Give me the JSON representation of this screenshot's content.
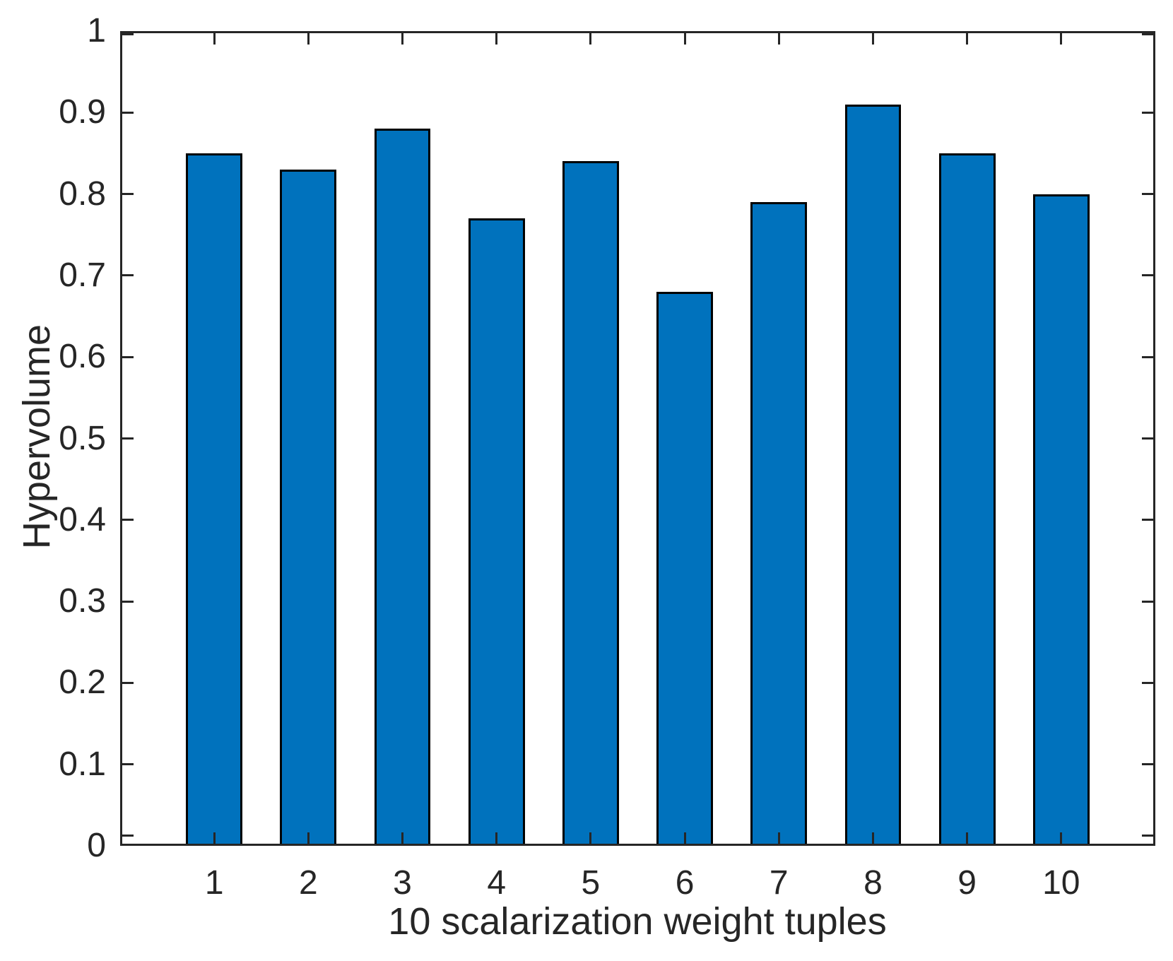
{
  "chart_data": {
    "type": "bar",
    "title": "",
    "xlabel": "10 scalarization weight tuples",
    "ylabel": "Hypervolume",
    "categories": [
      "1",
      "2",
      "3",
      "4",
      "5",
      "6",
      "7",
      "8",
      "9",
      "10"
    ],
    "values": [
      0.85,
      0.83,
      0.88,
      0.77,
      0.84,
      0.68,
      0.79,
      0.91,
      0.85,
      0.8
    ],
    "ylim": [
      0,
      1
    ],
    "yticks": [
      0,
      0.1,
      0.2,
      0.3,
      0.4,
      0.5,
      0.6,
      0.7,
      0.8,
      0.9,
      1
    ],
    "ytick_labels": [
      "0",
      "0.1",
      "0.2",
      "0.3",
      "0.4",
      "0.5",
      "0.6",
      "0.7",
      "0.8",
      "0.9",
      "1"
    ],
    "xlim_units": [
      0,
      11
    ],
    "bar_width_units": 0.6,
    "grid": false,
    "legend": null,
    "tick_direction": "in",
    "colors": {
      "bar_fill": "#0072BD",
      "bar_edge": "#000000",
      "axis": "#262626",
      "text": "#262626",
      "background": "#FFFFFF"
    }
  }
}
